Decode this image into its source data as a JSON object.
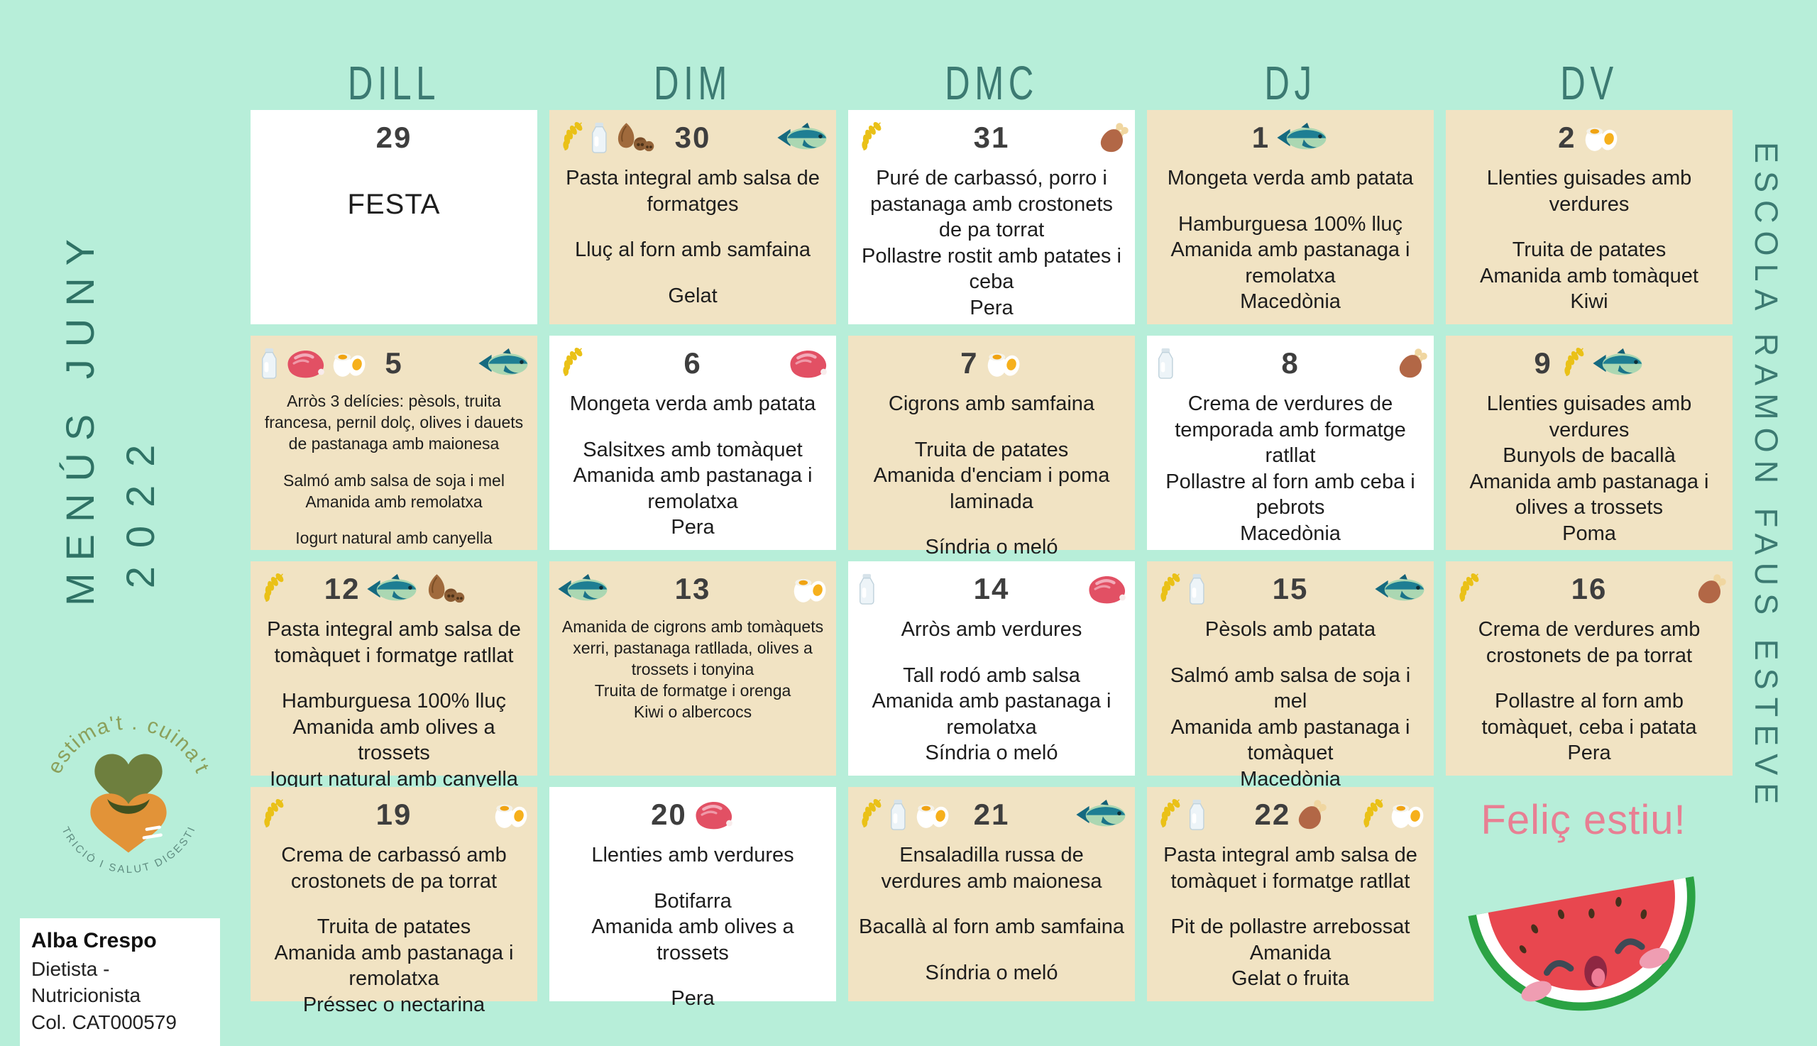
{
  "colors": {
    "background": "#b7eed9",
    "card_tan": "#f1e3c3",
    "card_white": "#ffffff",
    "heading_teal": "#3c7a72",
    "title_teal": "#2f7265",
    "text_dark": "#1d1d1d",
    "day_number": "#3e3e3e",
    "accent_pink": "#e87f93",
    "watermelon_red": "#e8474f",
    "watermelon_green": "#2ba344",
    "logo_olive": "#8ba05b",
    "logo_teal_gray": "#5f8c80",
    "wheat_yellow": "#eac117"
  },
  "sidebar_left": {
    "title_line1": "MENÚS JUNY",
    "title_line2": "2022",
    "logo": {
      "arc_top": "estima't . cuina't",
      "arc_bottom": "NUTRICIÓ I SALUT DIGESTIVA"
    },
    "credentials": {
      "name": "Alba Crespo",
      "role": "Dietista - Nutricionista",
      "license": "Col. CAT000579"
    }
  },
  "sidebar_right": {
    "school_name": "ESCOLA RAMON FAUS ESTEVE"
  },
  "footer_note": {
    "message": "Feliç estiu!"
  },
  "header": {
    "day_columns": [
      "DILL",
      "DIM",
      "DMC",
      "DJ",
      "DV"
    ]
  },
  "icons": {
    "wheat": "wheat-ear",
    "milk": "milk-bottle",
    "nuts": "nuts",
    "fish": "fish",
    "chicken": "chicken-drumstick",
    "ham": "ham",
    "egg": "boiled-egg"
  },
  "calendar": {
    "cells": [
      {
        "day": "29",
        "variant": "white",
        "emphasis": true,
        "groups": [
          [
            "FESTA"
          ]
        ]
      },
      {
        "day": "30",
        "variant": "tan",
        "icons_left": [
          "wheat",
          "milk",
          "nuts"
        ],
        "icons_right": [
          "fish"
        ],
        "groups": [
          [
            "Pasta integral amb salsa de formatges"
          ],
          [
            "Lluç al forn amb samfaina"
          ],
          [
            "Gelat"
          ]
        ]
      },
      {
        "day": "31",
        "variant": "white",
        "icons_left": [
          "wheat"
        ],
        "icons_right": [
          "chicken"
        ],
        "groups": [
          [
            "Puré de carbassó, porro i pastanaga amb crostonets de pa torrat",
            "Pollastre rostit amb patates i ceba",
            "Pera"
          ]
        ]
      },
      {
        "day": "1",
        "variant": "tan",
        "icons_mid": [
          "fish"
        ],
        "groups": [
          [
            "Mongeta verda amb patata"
          ],
          [
            "Hamburguesa 100% lluç",
            "Amanida amb pastanaga i remolatxa",
            "Macedònia"
          ]
        ]
      },
      {
        "day": "2",
        "variant": "tan",
        "icons_mid": [
          "egg"
        ],
        "groups": [
          [
            "Llenties guisades amb verdures"
          ],
          [
            "Truita de patates",
            "Amanida amb tomàquet",
            "Kiwi"
          ]
        ]
      },
      {
        "day": "5",
        "variant": "tan",
        "small": true,
        "icons_left": [
          "milk",
          "ham",
          "egg"
        ],
        "icons_right": [
          "fish"
        ],
        "groups": [
          [
            "Arròs 3 delícies: pèsols, truita francesa, pernil dolç, olives i dauets de pastanaga amb maionesa"
          ],
          [
            "Salmó amb salsa de soja i mel",
            "Amanida amb remolatxa"
          ],
          [
            "Iogurt natural amb canyella"
          ]
        ]
      },
      {
        "day": "6",
        "variant": "white",
        "icons_left": [
          "wheat"
        ],
        "icons_right": [
          "ham"
        ],
        "groups": [
          [
            "Mongeta verda amb patata"
          ],
          [
            "Salsitxes amb tomàquet",
            "Amanida amb pastanaga i remolatxa",
            "Pera"
          ]
        ]
      },
      {
        "day": "7",
        "variant": "tan",
        "icons_mid": [
          "egg"
        ],
        "groups": [
          [
            "Cigrons amb samfaina"
          ],
          [
            "Truita de patates",
            "Amanida d'enciam i poma laminada"
          ],
          [
            "Síndria o meló"
          ]
        ]
      },
      {
        "day": "8",
        "variant": "white",
        "icons_left": [
          "milk"
        ],
        "icons_right": [
          "chicken"
        ],
        "groups": [
          [
            "Crema de verdures de temporada amb formatge ratllat",
            "Pollastre al forn amb ceba i pebrots",
            "Macedònia"
          ]
        ]
      },
      {
        "day": "9",
        "variant": "tan",
        "icons_mid": [
          "wheat",
          "fish"
        ],
        "groups": [
          [
            "Llenties guisades amb verdures",
            "Bunyols de bacallà",
            "Amanida amb pastanaga i olives a trossets",
            "Poma"
          ]
        ]
      },
      {
        "day": "12",
        "variant": "tan",
        "icons_left": [
          "wheat"
        ],
        "icons_mid": [
          "fish",
          "nuts"
        ],
        "groups": [
          [
            "Pasta integral amb salsa de tomàquet i formatge ratllat"
          ],
          [
            "Hamburguesa 100% lluç",
            "Amanida amb olives a trossets",
            "Iogurt natural amb canyella"
          ]
        ]
      },
      {
        "day": "13",
        "variant": "tan",
        "small": true,
        "icons_left": [
          "fish"
        ],
        "icons_right": [
          "egg"
        ],
        "groups": [
          [
            "Amanida de cigrons amb tomàquets xerri, pastanaga ratllada, olives a trossets i tonyina",
            "Truita de formatge i orenga",
            "Kiwi o albercocs"
          ]
        ]
      },
      {
        "day": "14",
        "variant": "white",
        "icons_left": [
          "milk"
        ],
        "icons_right": [
          "ham"
        ],
        "groups": [
          [
            "Arròs amb verdures"
          ],
          [
            "Tall rodó amb salsa",
            "Amanida amb pastanaga i remolatxa",
            "Síndria o meló"
          ]
        ]
      },
      {
        "day": "15",
        "variant": "tan",
        "icons_left": [
          "wheat",
          "milk"
        ],
        "icons_right": [
          "fish"
        ],
        "groups": [
          [
            "Pèsols amb patata"
          ],
          [
            "Salmó amb salsa de soja i mel",
            "Amanida amb pastanaga i tomàquet",
            "Macedònia"
          ]
        ]
      },
      {
        "day": "16",
        "variant": "tan",
        "icons_left": [
          "wheat"
        ],
        "icons_right": [
          "chicken"
        ],
        "groups": [
          [
            "Crema de verdures amb crostonets de pa torrat"
          ],
          [
            "Pollastre al forn amb tomàquet, ceba i patata",
            "Pera"
          ]
        ]
      },
      {
        "day": "19",
        "variant": "tan",
        "icons_left": [
          "wheat"
        ],
        "icons_right": [
          "egg"
        ],
        "groups": [
          [
            "Crema de carbassó amb crostonets de pa torrat"
          ],
          [
            "Truita de patates",
            "Amanida amb pastanaga i remolatxa",
            "Préssec o nectarina"
          ]
        ]
      },
      {
        "day": "20",
        "variant": "white",
        "icons_mid": [
          "ham"
        ],
        "groups": [
          [
            "Llenties amb verdures"
          ],
          [
            "Botifarra",
            "Amanida amb olives a trossets"
          ],
          [
            "Pera"
          ]
        ]
      },
      {
        "day": "21",
        "variant": "tan",
        "icons_left": [
          "wheat",
          "milk",
          "egg"
        ],
        "icons_right": [
          "fish"
        ],
        "groups": [
          [
            "Ensaladilla russa de verdures amb maionesa"
          ],
          [
            "Bacallà al forn amb samfaina"
          ],
          [
            "Síndria o meló"
          ]
        ]
      },
      {
        "day": "22",
        "variant": "tan",
        "icons_left": [
          "wheat",
          "milk"
        ],
        "icons_mid": [
          "chicken"
        ],
        "icons_right": [
          "wheat",
          "egg"
        ],
        "groups": [
          [
            "Pasta integral amb salsa de tomàquet i formatge ratllat"
          ],
          [
            "Pit de pollastre arrebossat",
            "Amanida",
            "Gelat o fruita"
          ]
        ]
      }
    ]
  }
}
